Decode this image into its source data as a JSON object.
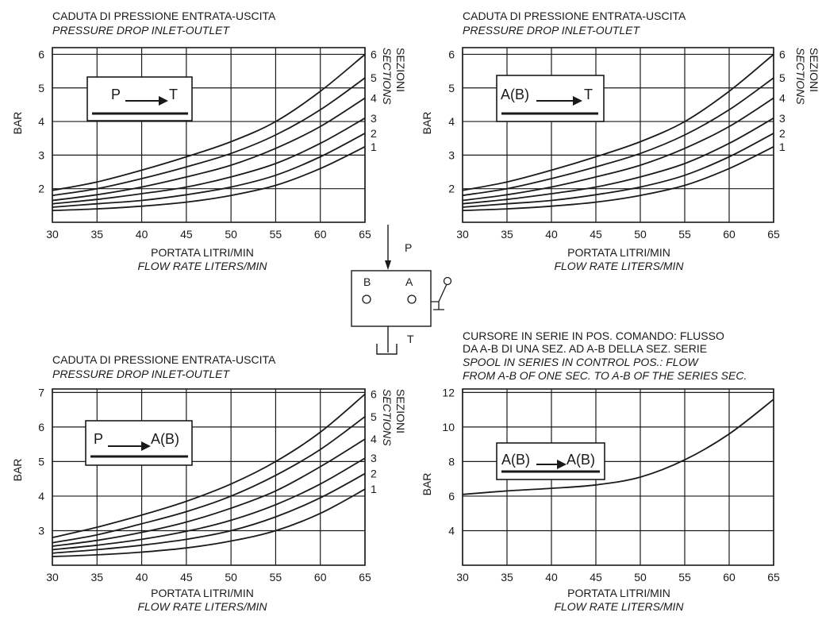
{
  "chart_data": [
    {
      "type": "line",
      "title": "CADUTA DI PRESSIONE ENTRATA-USCITA",
      "subtitle": "PRESSURE DROP INLET-OUTLET",
      "xlabel": "PORTATA LITRI/MIN",
      "xlabel2": "FLOW RATE LITERS/MIN",
      "ylabel": "BAR",
      "xlim": [
        30,
        65
      ],
      "ylim": [
        1,
        6.2
      ],
      "xticks": [
        "30",
        "35",
        "40",
        "45",
        "50",
        "55",
        "60",
        "65"
      ],
      "yticks": [
        "2",
        "3",
        "4",
        "5",
        "6"
      ],
      "ytick_values": [
        2,
        3,
        4,
        5,
        6
      ],
      "box_label": {
        "left": "P",
        "right": "T"
      },
      "sections_title": "SEZIONI",
      "sections_subtitle": "SECTIONS",
      "grid": true,
      "x": [
        30,
        35,
        40,
        45,
        50,
        55,
        60,
        65
      ],
      "series": [
        {
          "label": "1",
          "values": [
            1.35,
            1.4,
            1.48,
            1.6,
            1.8,
            2.1,
            2.6,
            3.25
          ]
        },
        {
          "label": "2",
          "values": [
            1.45,
            1.55,
            1.65,
            1.82,
            2.05,
            2.4,
            2.95,
            3.65
          ]
        },
        {
          "label": "3",
          "values": [
            1.55,
            1.68,
            1.85,
            2.05,
            2.35,
            2.75,
            3.35,
            4.1
          ]
        },
        {
          "label": "4",
          "values": [
            1.65,
            1.82,
            2.05,
            2.35,
            2.7,
            3.2,
            3.85,
            4.7
          ]
        },
        {
          "label": "5",
          "values": [
            1.8,
            2.0,
            2.3,
            2.65,
            3.05,
            3.6,
            4.35,
            5.3
          ]
        },
        {
          "label": "6",
          "values": [
            1.95,
            2.2,
            2.55,
            2.95,
            3.4,
            4.0,
            4.9,
            6.0
          ]
        }
      ]
    },
    {
      "type": "line",
      "title": "CADUTA DI PRESSIONE ENTRATA-USCITA",
      "subtitle": "PRESSURE DROP INLET-OUTLET",
      "xlabel": "PORTATA LITRI/MIN",
      "xlabel2": "FLOW RATE LITERS/MIN",
      "ylabel": "BAR",
      "xlim": [
        30,
        65
      ],
      "ylim": [
        1,
        6.2
      ],
      "xticks": [
        "30",
        "35",
        "40",
        "45",
        "50",
        "55",
        "60",
        "65"
      ],
      "yticks": [
        "2",
        "3",
        "4",
        "5",
        "6"
      ],
      "ytick_values": [
        2,
        3,
        4,
        5,
        6
      ],
      "box_label": {
        "left": "A(B)",
        "right": "T"
      },
      "sections_title": "SEZIONI",
      "sections_subtitle": "SECTIONS",
      "grid": true,
      "x": [
        30,
        35,
        40,
        45,
        50,
        55,
        60,
        65
      ],
      "series": [
        {
          "label": "1",
          "values": [
            1.35,
            1.4,
            1.48,
            1.6,
            1.8,
            2.1,
            2.6,
            3.25
          ]
        },
        {
          "label": "2",
          "values": [
            1.45,
            1.55,
            1.65,
            1.82,
            2.05,
            2.4,
            2.95,
            3.65
          ]
        },
        {
          "label": "3",
          "values": [
            1.55,
            1.68,
            1.85,
            2.05,
            2.35,
            2.75,
            3.35,
            4.1
          ]
        },
        {
          "label": "4",
          "values": [
            1.65,
            1.82,
            2.05,
            2.35,
            2.7,
            3.2,
            3.85,
            4.7
          ]
        },
        {
          "label": "5",
          "values": [
            1.8,
            2.0,
            2.3,
            2.65,
            3.05,
            3.6,
            4.35,
            5.3
          ]
        },
        {
          "label": "6",
          "values": [
            1.95,
            2.2,
            2.55,
            2.95,
            3.4,
            4.0,
            4.9,
            6.0
          ]
        }
      ]
    },
    {
      "type": "line",
      "title": "CADUTA DI PRESSIONE ENTRATA-USCITA",
      "subtitle": "PRESSURE DROP INLET-OUTLET",
      "xlabel": "PORTATA LITRI/MIN",
      "xlabel2": "FLOW RATE LITERS/MIN",
      "ylabel": "BAR",
      "xlim": [
        30,
        65
      ],
      "ylim": [
        2,
        7.1
      ],
      "xticks": [
        "30",
        "35",
        "40",
        "45",
        "50",
        "55",
        "60",
        "65"
      ],
      "yticks": [
        "3",
        "4",
        "5",
        "6",
        "7"
      ],
      "ytick_values": [
        3,
        4,
        5,
        6,
        7
      ],
      "box_label": {
        "left": "P",
        "right": "A(B)"
      },
      "sections_title": "SEZIONI",
      "sections_subtitle": "SECTIONS",
      "grid": true,
      "x": [
        30,
        35,
        40,
        45,
        50,
        55,
        60,
        65
      ],
      "series": [
        {
          "label": "1",
          "values": [
            2.25,
            2.3,
            2.38,
            2.5,
            2.7,
            3.0,
            3.5,
            4.2
          ]
        },
        {
          "label": "2",
          "values": [
            2.35,
            2.45,
            2.58,
            2.75,
            3.0,
            3.4,
            3.95,
            4.65
          ]
        },
        {
          "label": "3",
          "values": [
            2.45,
            2.58,
            2.75,
            2.98,
            3.3,
            3.75,
            4.35,
            5.1
          ]
        },
        {
          "label": "4",
          "values": [
            2.55,
            2.72,
            2.95,
            3.25,
            3.65,
            4.15,
            4.85,
            5.65
          ]
        },
        {
          "label": "5",
          "values": [
            2.65,
            2.88,
            3.2,
            3.55,
            4.0,
            4.6,
            5.35,
            6.3
          ]
        },
        {
          "label": "6",
          "values": [
            2.8,
            3.1,
            3.45,
            3.85,
            4.35,
            5.0,
            5.85,
            6.95
          ]
        }
      ]
    },
    {
      "type": "line",
      "title_lines": [
        "CURSORE IN SERIE IN POS. COMANDO: FLUSSO",
        "DA A-B DI UNA SEZ. AD A-B DELLA SEZ. SERIE"
      ],
      "subtitle_lines": [
        "SPOOL IN SERIES IN CONTROL POS.: FLOW",
        "FROM A-B OF ONE SEC. TO A-B OF THE SERIES SEC."
      ],
      "xlabel": "PORTATA LITRI/MIN",
      "xlabel2": "FLOW RATE LITERS/MIN",
      "ylabel": "BAR",
      "xlim": [
        30,
        65
      ],
      "ylim": [
        2,
        12.2
      ],
      "xticks": [
        "30",
        "35",
        "40",
        "45",
        "50",
        "55",
        "60",
        "65"
      ],
      "yticks": [
        "4",
        "6",
        "8",
        "10",
        "12"
      ],
      "ytick_values": [
        4,
        6,
        8,
        10,
        12
      ],
      "box_label": {
        "left": "A(B)",
        "right": "A(B)"
      },
      "grid": true,
      "x": [
        30,
        35,
        40,
        45,
        50,
        55,
        60,
        65
      ],
      "series": [
        {
          "values": [
            6.1,
            6.3,
            6.45,
            6.65,
            7.1,
            8.1,
            9.6,
            11.6
          ]
        }
      ]
    }
  ],
  "diagram": {
    "port_p": "P",
    "port_a": "A",
    "port_b": "B",
    "port_t": "T"
  },
  "colors": {
    "ink": "#1a1a1a",
    "background": "#ffffff"
  }
}
